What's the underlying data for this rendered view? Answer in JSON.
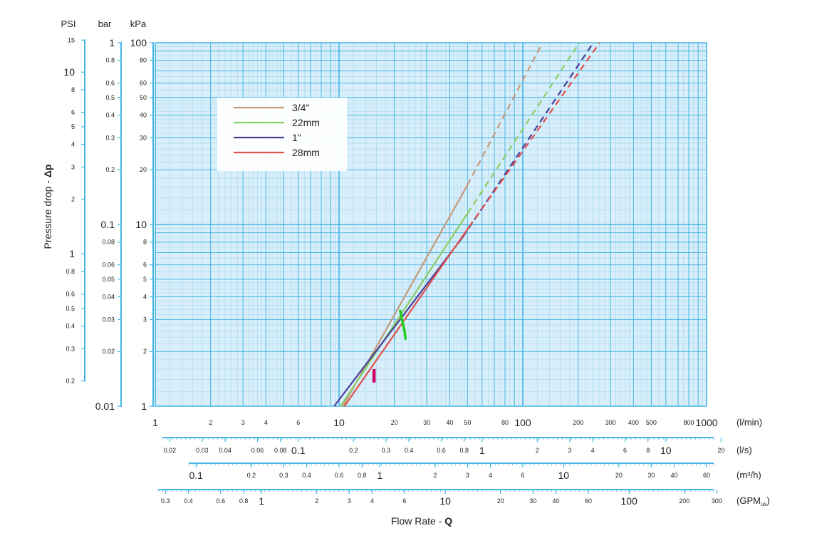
{
  "chart_data": {
    "type": "line",
    "x_scale": "log",
    "y_scale": "log",
    "grid": true,
    "legend_position": "top-left",
    "primary_x": {
      "unit": "(l/min)",
      "range": [
        1,
        1000
      ]
    },
    "primary_y": {
      "unit": "kPa",
      "range": [
        1,
        100
      ]
    },
    "y_axes": [
      {
        "unit": "PSI",
        "ticks": [
          "15",
          "10",
          "8",
          "6",
          "5",
          "4",
          "3",
          "2",
          "1",
          "0.8",
          "0.6",
          "0.5",
          "0.4",
          "0.3",
          "0.2"
        ]
      },
      {
        "unit": "bar",
        "ticks": [
          "1",
          "0.8",
          "0.6",
          "0.5",
          "0.4",
          "0.3",
          "0.2",
          "0.1",
          "0.08",
          "0.06",
          "0.05",
          "0.04",
          "0.03",
          "0.02",
          "0.01"
        ]
      },
      {
        "unit": "kPa",
        "ticks": [
          "100",
          "80",
          "60",
          "50",
          "40",
          "30",
          "20",
          "10",
          "8",
          "6",
          "5",
          "4",
          "3",
          "2",
          "1"
        ]
      }
    ],
    "y_title": {
      "prefix": "Pressure drop - ",
      "symbol": "Δp"
    },
    "x_axes": [
      {
        "unit": "(l/min)",
        "ticks": [
          "1",
          "2",
          "3",
          "4",
          "6",
          "10",
          "20",
          "30",
          "40",
          "50",
          "80",
          "100",
          "200",
          "300",
          "400",
          "500",
          "800",
          "1000"
        ]
      },
      {
        "unit": "(l/s)",
        "ticks": [
          "0.02",
          "0.03",
          "0.04",
          "0.06",
          "0.08",
          "0.1",
          "0.2",
          "0.3",
          "0.4",
          "0.6",
          "0.8",
          "1",
          "2",
          "3",
          "4",
          "6",
          "8",
          "10",
          "20"
        ]
      },
      {
        "unit": "(m³/h)",
        "ticks": [
          "0.1",
          "0.2",
          "0.3",
          "0.4",
          "0.6",
          "0.8",
          "1",
          "2",
          "3",
          "4",
          "6",
          "10",
          "20",
          "30",
          "40",
          "60"
        ]
      },
      {
        "unit_main": "(GPM",
        "unit_sub": "us",
        "unit_close": ")",
        "ticks": [
          "0.3",
          "0.4",
          "0.6",
          "0.8",
          "1",
          "2",
          "3",
          "4",
          "6",
          "10",
          "20",
          "30",
          "40",
          "60",
          "100",
          "200",
          "300"
        ]
      }
    ],
    "x_title": {
      "prefix": "Flow Rate - ",
      "symbol": "Q"
    },
    "series": [
      {
        "name": "3/4\"",
        "color": "#c49a7a",
        "solid": [
          [
            10.5,
            1
          ],
          [
            50,
            16.5
          ]
        ],
        "dashed": [
          [
            50,
            16.5
          ],
          [
            128,
            100
          ]
        ]
      },
      {
        "name": "22mm",
        "color": "#8ccc64",
        "solid": [
          [
            10.2,
            1
          ],
          [
            50,
            11.5
          ]
        ],
        "dashed": [
          [
            50,
            11.5
          ],
          [
            203,
            100
          ]
        ]
      },
      {
        "name": "1\"",
        "color": "#4a3e96",
        "solid": [
          [
            9.4,
            1
          ],
          [
            47,
            8.5
          ]
        ],
        "dashed": [
          [
            47,
            8.5
          ],
          [
            242,
            100
          ]
        ]
      },
      {
        "name": "28mm",
        "color": "#e0504a",
        "solid": [
          [
            10.7,
            1
          ],
          [
            51,
            9.7
          ]
        ],
        "dashed": [
          [
            51,
            9.7
          ],
          [
            262,
            100
          ]
        ]
      }
    ],
    "annotations": [
      {
        "kind": "bar",
        "color": "#cc0066",
        "x": 15.5,
        "y": [
          1.35,
          1.6
        ]
      },
      {
        "kind": "curve",
        "color": "#22cc22",
        "points": [
          [
            21.5,
            3.35
          ],
          [
            22.0,
            3.0
          ],
          [
            22.7,
            2.6
          ],
          [
            23.0,
            2.35
          ]
        ]
      }
    ]
  }
}
